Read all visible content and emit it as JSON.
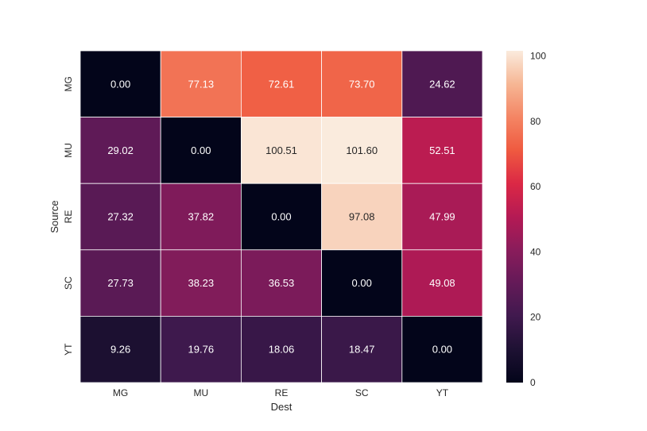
{
  "chart_data": {
    "type": "heatmap",
    "title": "",
    "xlabel": "Dest",
    "ylabel": "Source",
    "x_categories": [
      "MG",
      "MU",
      "RE",
      "SC",
      "YT"
    ],
    "y_categories": [
      "MG",
      "MU",
      "RE",
      "SC",
      "YT"
    ],
    "values": [
      [
        0.0,
        77.13,
        72.61,
        73.7,
        24.62
      ],
      [
        29.02,
        0.0,
        100.51,
        101.6,
        52.51
      ],
      [
        27.32,
        37.82,
        0.0,
        97.08,
        47.99
      ],
      [
        27.73,
        38.23,
        36.53,
        0.0,
        49.08
      ],
      [
        9.26,
        19.76,
        18.06,
        18.47,
        0.0
      ]
    ],
    "value_labels": [
      [
        "0.00",
        "77.13",
        "72.61",
        "73.70",
        "24.62"
      ],
      [
        "29.02",
        "0.00",
        "100.51",
        "101.60",
        "52.51"
      ],
      [
        "27.32",
        "37.82",
        "0.00",
        "97.08",
        "47.99"
      ],
      [
        "27.73",
        "38.23",
        "36.53",
        "0.00",
        "49.08"
      ],
      [
        "9.26",
        "19.76",
        "18.06",
        "18.47",
        "0.00"
      ]
    ],
    "colorbar": {
      "range": [
        0,
        101.6
      ],
      "ticks": [
        "0",
        "20",
        "40",
        "60",
        "80",
        "100"
      ],
      "tick_values": [
        0,
        20,
        40,
        60,
        80,
        100
      ],
      "colormap": "rocket"
    }
  }
}
